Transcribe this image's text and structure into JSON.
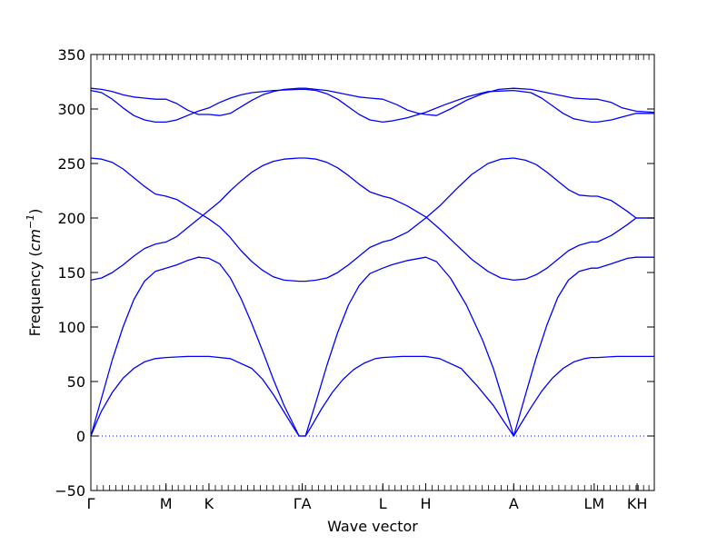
{
  "chart_data": {
    "type": "line",
    "xlabel": "Wave vector",
    "ylabel": "Frequency (cm⁻¹)",
    "ylabel_main": "Frequency (",
    "ylabel_unit": "cm",
    "ylabel_exp": "−1",
    "ylabel_close": ")",
    "ylim": [
      -50,
      350
    ],
    "xlim": [
      0,
      5.25
    ],
    "yticks": [
      -50,
      0,
      50,
      100,
      150,
      200,
      250,
      300,
      350
    ],
    "ytick_labels": [
      "−50",
      "0",
      "50",
      "100",
      "150",
      "200",
      "250",
      "300",
      "350"
    ],
    "xticks": [
      {
        "label": "Γ",
        "x": 0
      },
      {
        "label": "M",
        "x": 0.7
      },
      {
        "label": "K",
        "x": 1.1
      },
      {
        "label": "ΓA",
        "x": 1.97
      },
      {
        "label": "L",
        "x": 2.72
      },
      {
        "label": "H",
        "x": 3.12
      },
      {
        "label": "A",
        "x": 3.94
      },
      {
        "label": "LM",
        "x": 4.69
      },
      {
        "label": "KH",
        "x": 5.09
      }
    ],
    "segments": [
      {
        "from": "Γ",
        "to": "M",
        "x": [
          0,
          0.7
        ]
      },
      {
        "from": "M",
        "to": "K",
        "x": [
          0.7,
          1.1
        ]
      },
      {
        "from": "K",
        "to": "Γ",
        "x": [
          1.1,
          1.94
        ]
      },
      {
        "from": "Γ",
        "to": "A",
        "x": [
          1.94,
          2.0
        ]
      },
      {
        "from": "A",
        "to": "L",
        "x": [
          2.0,
          2.72
        ]
      },
      {
        "from": "L",
        "to": "H",
        "x": [
          2.72,
          3.12
        ]
      },
      {
        "from": "H",
        "to": "A",
        "x": [
          3.12,
          3.94
        ]
      },
      {
        "from": "A",
        "to": "L",
        "x": [
          3.94,
          4.66
        ]
      },
      {
        "from": "M",
        "to": "K",
        "x": [
          4.72,
          5.08
        ]
      },
      {
        "from": "H",
        "to": "A",
        "x": [
          5.1,
          5.25
        ]
      }
    ],
    "zero_line": 0,
    "series": [
      {
        "values": [
          [
            0,
            0
          ],
          [
            0.05,
            12
          ],
          [
            0.1,
            23
          ],
          [
            0.2,
            40
          ],
          [
            0.3,
            53
          ],
          [
            0.4,
            62
          ],
          [
            0.5,
            68
          ],
          [
            0.6,
            71
          ],
          [
            0.7,
            72
          ],
          [
            0.9,
            73
          ],
          [
            1.1,
            73
          ],
          [
            1.3,
            71
          ],
          [
            1.5,
            62
          ],
          [
            1.6,
            52
          ],
          [
            1.7,
            38
          ],
          [
            1.8,
            22
          ],
          [
            1.9,
            6
          ],
          [
            1.94,
            0
          ],
          [
            2.0,
            0
          ],
          [
            2.05,
            8
          ],
          [
            2.15,
            25
          ],
          [
            2.25,
            40
          ],
          [
            2.35,
            52
          ],
          [
            2.45,
            61
          ],
          [
            2.55,
            67
          ],
          [
            2.65,
            71
          ],
          [
            2.72,
            72
          ],
          [
            2.9,
            73
          ],
          [
            3.12,
            73
          ],
          [
            3.25,
            71
          ],
          [
            3.45,
            62
          ],
          [
            3.6,
            46
          ],
          [
            3.75,
            28
          ],
          [
            3.85,
            13
          ],
          [
            3.94,
            0
          ],
          [
            4.0,
            10
          ],
          [
            4.1,
            26
          ],
          [
            4.2,
            41
          ],
          [
            4.3,
            53
          ],
          [
            4.4,
            62
          ],
          [
            4.5,
            68
          ],
          [
            4.6,
            71
          ],
          [
            4.66,
            72
          ],
          [
            4.72,
            72
          ],
          [
            4.9,
            73
          ],
          [
            5.08,
            73
          ],
          [
            5.25,
            73
          ]
        ]
      },
      {
        "values": [
          [
            0,
            0
          ],
          [
            0.1,
            35
          ],
          [
            0.2,
            70
          ],
          [
            0.3,
            100
          ],
          [
            0.4,
            125
          ],
          [
            0.5,
            142
          ],
          [
            0.6,
            151
          ],
          [
            0.7,
            154
          ],
          [
            0.8,
            157
          ],
          [
            0.9,
            161
          ],
          [
            1.0,
            164
          ],
          [
            1.1,
            163
          ],
          [
            1.2,
            158
          ],
          [
            1.3,
            145
          ],
          [
            1.4,
            126
          ],
          [
            1.5,
            103
          ],
          [
            1.6,
            78
          ],
          [
            1.7,
            52
          ],
          [
            1.8,
            28
          ],
          [
            1.9,
            8
          ],
          [
            1.94,
            0
          ],
          [
            2.0,
            0
          ],
          [
            2.1,
            32
          ],
          [
            2.2,
            65
          ],
          [
            2.3,
            95
          ],
          [
            2.4,
            120
          ],
          [
            2.5,
            138
          ],
          [
            2.6,
            149
          ],
          [
            2.72,
            154
          ],
          [
            2.8,
            157
          ],
          [
            2.95,
            161
          ],
          [
            3.12,
            164
          ],
          [
            3.22,
            160
          ],
          [
            3.35,
            145
          ],
          [
            3.5,
            120
          ],
          [
            3.65,
            88
          ],
          [
            3.75,
            62
          ],
          [
            3.85,
            30
          ],
          [
            3.94,
            0
          ],
          [
            4.05,
            38
          ],
          [
            4.15,
            72
          ],
          [
            4.25,
            102
          ],
          [
            4.35,
            127
          ],
          [
            4.45,
            143
          ],
          [
            4.55,
            151
          ],
          [
            4.66,
            154
          ],
          [
            4.72,
            154
          ],
          [
            4.85,
            158
          ],
          [
            5.0,
            163
          ],
          [
            5.08,
            164
          ],
          [
            5.25,
            164
          ]
        ]
      },
      {
        "values": [
          [
            0,
            143
          ],
          [
            0.1,
            145
          ],
          [
            0.2,
            150
          ],
          [
            0.3,
            157
          ],
          [
            0.4,
            165
          ],
          [
            0.5,
            172
          ],
          [
            0.6,
            176
          ],
          [
            0.7,
            178
          ],
          [
            0.8,
            183
          ],
          [
            0.9,
            191
          ],
          [
            1.0,
            199
          ],
          [
            1.1,
            207
          ],
          [
            1.2,
            215
          ],
          [
            1.3,
            225
          ],
          [
            1.4,
            234
          ],
          [
            1.5,
            242
          ],
          [
            1.6,
            248
          ],
          [
            1.7,
            252
          ],
          [
            1.8,
            254
          ],
          [
            1.94,
            255
          ],
          [
            2.0,
            255
          ],
          [
            2.1,
            254
          ],
          [
            2.2,
            251
          ],
          [
            2.3,
            246
          ],
          [
            2.4,
            239
          ],
          [
            2.5,
            231
          ],
          [
            2.6,
            224
          ],
          [
            2.72,
            220
          ],
          [
            2.8,
            218
          ],
          [
            2.95,
            211
          ],
          [
            3.12,
            201
          ],
          [
            3.25,
            190
          ],
          [
            3.4,
            176
          ],
          [
            3.55,
            162
          ],
          [
            3.7,
            151
          ],
          [
            3.82,
            145
          ],
          [
            3.94,
            143
          ],
          [
            4.05,
            144
          ],
          [
            4.15,
            148
          ],
          [
            4.25,
            154
          ],
          [
            4.35,
            162
          ],
          [
            4.45,
            170
          ],
          [
            4.55,
            175
          ],
          [
            4.66,
            178
          ],
          [
            4.72,
            178
          ],
          [
            4.85,
            184
          ],
          [
            5.0,
            194
          ],
          [
            5.08,
            200
          ],
          [
            5.25,
            200
          ]
        ]
      },
      {
        "values": [
          [
            0,
            255
          ],
          [
            0.1,
            254
          ],
          [
            0.2,
            251
          ],
          [
            0.3,
            245
          ],
          [
            0.4,
            237
          ],
          [
            0.5,
            229
          ],
          [
            0.6,
            222
          ],
          [
            0.7,
            220
          ],
          [
            0.8,
            217
          ],
          [
            0.9,
            211
          ],
          [
            1.0,
            205
          ],
          [
            1.1,
            199
          ],
          [
            1.2,
            192
          ],
          [
            1.3,
            182
          ],
          [
            1.4,
            170
          ],
          [
            1.5,
            160
          ],
          [
            1.6,
            152
          ],
          [
            1.7,
            146
          ],
          [
            1.8,
            143
          ],
          [
            1.94,
            142
          ],
          [
            2.0,
            142
          ],
          [
            2.1,
            143
          ],
          [
            2.2,
            145
          ],
          [
            2.3,
            150
          ],
          [
            2.4,
            157
          ],
          [
            2.5,
            165
          ],
          [
            2.6,
            173
          ],
          [
            2.72,
            178
          ],
          [
            2.8,
            180
          ],
          [
            2.95,
            187
          ],
          [
            3.12,
            200
          ],
          [
            3.25,
            211
          ],
          [
            3.4,
            226
          ],
          [
            3.55,
            240
          ],
          [
            3.7,
            250
          ],
          [
            3.82,
            254
          ],
          [
            3.94,
            255
          ],
          [
            4.05,
            253
          ],
          [
            4.15,
            249
          ],
          [
            4.25,
            242
          ],
          [
            4.35,
            234
          ],
          [
            4.45,
            226
          ],
          [
            4.55,
            221
          ],
          [
            4.66,
            220
          ],
          [
            4.72,
            220
          ],
          [
            4.85,
            216
          ],
          [
            5.0,
            206
          ],
          [
            5.08,
            200
          ],
          [
            5.25,
            200
          ]
        ]
      },
      {
        "values": [
          [
            0,
            317
          ],
          [
            0.1,
            315
          ],
          [
            0.2,
            309
          ],
          [
            0.3,
            301
          ],
          [
            0.4,
            294
          ],
          [
            0.5,
            290
          ],
          [
            0.6,
            288
          ],
          [
            0.7,
            288
          ],
          [
            0.8,
            290
          ],
          [
            0.9,
            294
          ],
          [
            1.0,
            298
          ],
          [
            1.1,
            301
          ],
          [
            1.2,
            306
          ],
          [
            1.3,
            310
          ],
          [
            1.4,
            313
          ],
          [
            1.5,
            315
          ],
          [
            1.7,
            317
          ],
          [
            1.94,
            318
          ],
          [
            2.0,
            318
          ],
          [
            2.1,
            317
          ],
          [
            2.2,
            314
          ],
          [
            2.3,
            309
          ],
          [
            2.4,
            302
          ],
          [
            2.5,
            295
          ],
          [
            2.6,
            290
          ],
          [
            2.72,
            288
          ],
          [
            2.8,
            289
          ],
          [
            2.95,
            292
          ],
          [
            3.12,
            297
          ],
          [
            3.3,
            304
          ],
          [
            3.5,
            311
          ],
          [
            3.7,
            316
          ],
          [
            3.94,
            317
          ],
          [
            4.1,
            315
          ],
          [
            4.2,
            310
          ],
          [
            4.3,
            303
          ],
          [
            4.4,
            296
          ],
          [
            4.5,
            291
          ],
          [
            4.66,
            288
          ],
          [
            4.72,
            288
          ],
          [
            4.85,
            290
          ],
          [
            5.0,
            294
          ],
          [
            5.08,
            296
          ],
          [
            5.25,
            296
          ]
        ]
      },
      {
        "values": [
          [
            0,
            319
          ],
          [
            0.1,
            318
          ],
          [
            0.2,
            316
          ],
          [
            0.3,
            313
          ],
          [
            0.4,
            311
          ],
          [
            0.5,
            310
          ],
          [
            0.6,
            309
          ],
          [
            0.7,
            309
          ],
          [
            0.8,
            305
          ],
          [
            0.9,
            299
          ],
          [
            1.0,
            295
          ],
          [
            1.1,
            295
          ],
          [
            1.2,
            294
          ],
          [
            1.3,
            296
          ],
          [
            1.4,
            302
          ],
          [
            1.5,
            308
          ],
          [
            1.6,
            313
          ],
          [
            1.7,
            316
          ],
          [
            1.8,
            318
          ],
          [
            1.94,
            319
          ],
          [
            2.0,
            319
          ],
          [
            2.1,
            318
          ],
          [
            2.2,
            317
          ],
          [
            2.3,
            315
          ],
          [
            2.4,
            313
          ],
          [
            2.5,
            311
          ],
          [
            2.6,
            310
          ],
          [
            2.72,
            309
          ],
          [
            2.85,
            304
          ],
          [
            2.95,
            299
          ],
          [
            3.05,
            296
          ],
          [
            3.12,
            295
          ],
          [
            3.22,
            294
          ],
          [
            3.35,
            300
          ],
          [
            3.5,
            308
          ],
          [
            3.65,
            314
          ],
          [
            3.8,
            318
          ],
          [
            3.94,
            319
          ],
          [
            4.1,
            318
          ],
          [
            4.2,
            316
          ],
          [
            4.3,
            314
          ],
          [
            4.4,
            312
          ],
          [
            4.5,
            310
          ],
          [
            4.66,
            309
          ],
          [
            4.72,
            309
          ],
          [
            4.85,
            306
          ],
          [
            4.95,
            301
          ],
          [
            5.08,
            298
          ],
          [
            5.25,
            297
          ]
        ]
      }
    ],
    "colors": {
      "line": "#0000ff",
      "zero_line": "#0000ff",
      "axes": "#000000"
    },
    "grid": false
  }
}
